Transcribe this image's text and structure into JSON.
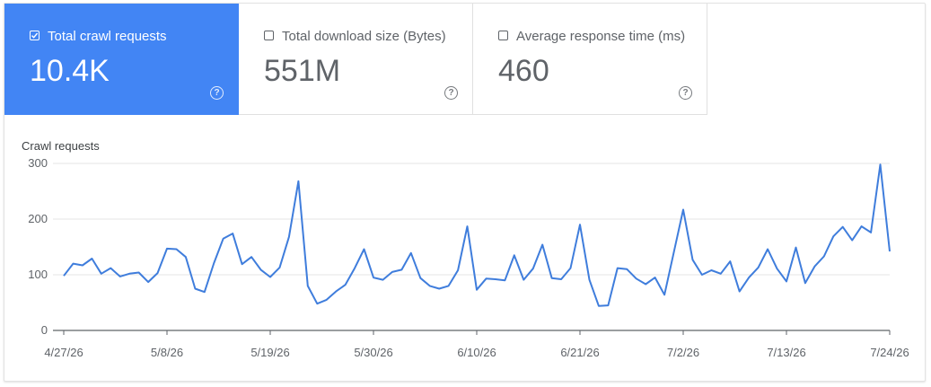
{
  "metrics": [
    {
      "label": "Total crawl requests",
      "value": "10.4K",
      "checked": true,
      "help": "?"
    },
    {
      "label": "Total download size (Bytes)",
      "value": "551M",
      "checked": false,
      "help": "?"
    },
    {
      "label": "Average response time (ms)",
      "value": "460",
      "checked": false,
      "help": "?"
    }
  ],
  "colors": {
    "accent": "#4285f4",
    "line": "#3f7ddc"
  },
  "chart_data": {
    "type": "line",
    "title": "Crawl requests",
    "x_start": "2026-04-27",
    "x_tick_labels": [
      "4/27/26",
      "5/8/26",
      "5/19/26",
      "5/30/26",
      "6/10/26",
      "6/21/26",
      "7/2/26",
      "7/13/26",
      "7/24/26"
    ],
    "y_ticks": [
      0,
      100,
      200,
      300
    ],
    "ylim": [
      0,
      300
    ],
    "grid": true,
    "series": [
      {
        "name": "Crawl requests",
        "values": [
          98,
          120,
          117,
          129,
          102,
          112,
          97,
          102,
          104,
          87,
          103,
          147,
          146,
          132,
          75,
          69,
          121,
          165,
          174,
          119,
          132,
          109,
          96,
          113,
          168,
          268,
          80,
          48,
          55,
          70,
          82,
          112,
          146,
          95,
          91,
          105,
          109,
          139,
          94,
          80,
          75,
          80,
          108,
          187,
          73,
          93,
          92,
          90,
          135,
          91,
          111,
          154,
          94,
          92,
          112,
          190,
          91,
          44,
          45,
          112,
          110,
          93,
          83,
          95,
          64,
          140,
          217,
          127,
          100,
          108,
          102,
          124,
          70,
          95,
          113,
          146,
          111,
          88,
          149,
          85,
          115,
          133,
          169,
          186,
          162,
          187,
          176,
          298,
          142
        ]
      }
    ]
  }
}
